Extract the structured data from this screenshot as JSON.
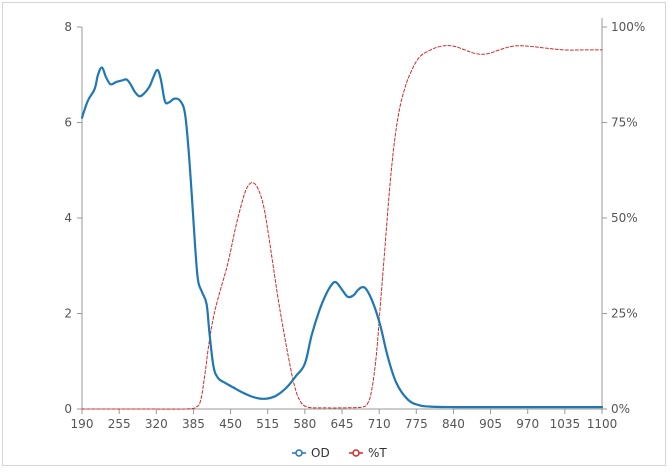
{
  "chart_data": {
    "type": "line",
    "title": "",
    "xlabel": "",
    "ylabel": "",
    "y2label": "",
    "xlim": [
      190,
      1100
    ],
    "ylim": [
      0,
      8
    ],
    "y2lim": [
      0,
      100
    ],
    "grid": false,
    "legend_position": "bottom",
    "x_ticks": [
      "190",
      "255",
      "320",
      "385",
      "450",
      "515",
      "580",
      "645",
      "710",
      "775",
      "840",
      "905",
      "970",
      "1035",
      "1100"
    ],
    "y_ticks": [
      "0",
      "2",
      "4",
      "6",
      "8"
    ],
    "y2_ticks": [
      "0%",
      "25%",
      "50%",
      "75%",
      "100%"
    ],
    "series": [
      {
        "name": "OD",
        "axis": "left",
        "color": "#1f77b4",
        "style": "solid",
        "points": [
          [
            190,
            6.1
          ],
          [
            200,
            6.45
          ],
          [
            212,
            6.7
          ],
          [
            218,
            7.0
          ],
          [
            225,
            7.15
          ],
          [
            232,
            6.95
          ],
          [
            240,
            6.8
          ],
          [
            250,
            6.85
          ],
          [
            260,
            6.88
          ],
          [
            268,
            6.9
          ],
          [
            275,
            6.8
          ],
          [
            282,
            6.65
          ],
          [
            290,
            6.55
          ],
          [
            298,
            6.6
          ],
          [
            308,
            6.75
          ],
          [
            315,
            6.95
          ],
          [
            322,
            7.1
          ],
          [
            328,
            6.9
          ],
          [
            335,
            6.45
          ],
          [
            342,
            6.42
          ],
          [
            352,
            6.5
          ],
          [
            362,
            6.45
          ],
          [
            370,
            6.2
          ],
          [
            376,
            5.5
          ],
          [
            382,
            4.5
          ],
          [
            388,
            3.4
          ],
          [
            393,
            2.7
          ],
          [
            400,
            2.45
          ],
          [
            408,
            2.2
          ],
          [
            413,
            1.6
          ],
          [
            420,
            0.9
          ],
          [
            428,
            0.65
          ],
          [
            440,
            0.55
          ],
          [
            455,
            0.45
          ],
          [
            470,
            0.35
          ],
          [
            485,
            0.27
          ],
          [
            500,
            0.22
          ],
          [
            515,
            0.22
          ],
          [
            530,
            0.28
          ],
          [
            548,
            0.45
          ],
          [
            565,
            0.7
          ],
          [
            580,
            0.95
          ],
          [
            592,
            1.55
          ],
          [
            605,
            2.05
          ],
          [
            617,
            2.4
          ],
          [
            628,
            2.62
          ],
          [
            635,
            2.65
          ],
          [
            645,
            2.5
          ],
          [
            655,
            2.35
          ],
          [
            665,
            2.38
          ],
          [
            672,
            2.48
          ],
          [
            680,
            2.55
          ],
          [
            688,
            2.5
          ],
          [
            700,
            2.2
          ],
          [
            712,
            1.75
          ],
          [
            725,
            1.1
          ],
          [
            740,
            0.55
          ],
          [
            760,
            0.2
          ],
          [
            780,
            0.08
          ],
          [
            800,
            0.05
          ],
          [
            840,
            0.04
          ],
          [
            900,
            0.04
          ],
          [
            970,
            0.04
          ],
          [
            1035,
            0.04
          ],
          [
            1100,
            0.04
          ]
        ]
      },
      {
        "name": "%T",
        "axis": "right",
        "color": "#d62728",
        "style": "dashed",
        "points": [
          [
            190,
            0
          ],
          [
            300,
            0
          ],
          [
            370,
            0
          ],
          [
            390,
            0.5
          ],
          [
            398,
            2.5
          ],
          [
            405,
            9
          ],
          [
            412,
            17
          ],
          [
            420,
            24
          ],
          [
            430,
            30
          ],
          [
            445,
            38
          ],
          [
            458,
            47
          ],
          [
            468,
            53
          ],
          [
            476,
            57
          ],
          [
            484,
            59
          ],
          [
            492,
            59
          ],
          [
            500,
            57
          ],
          [
            508,
            53
          ],
          [
            516,
            46
          ],
          [
            524,
            38
          ],
          [
            532,
            30
          ],
          [
            541,
            22
          ],
          [
            552,
            13
          ],
          [
            562,
            6
          ],
          [
            572,
            2
          ],
          [
            585,
            0.5
          ],
          [
            610,
            0.3
          ],
          [
            650,
            0.3
          ],
          [
            680,
            0.5
          ],
          [
            690,
            1.5
          ],
          [
            697,
            5
          ],
          [
            705,
            14
          ],
          [
            712,
            27
          ],
          [
            720,
            42
          ],
          [
            728,
            57
          ],
          [
            736,
            69
          ],
          [
            745,
            78
          ],
          [
            755,
            84
          ],
          [
            765,
            88
          ],
          [
            780,
            92
          ],
          [
            800,
            94
          ],
          [
            820,
            95
          ],
          [
            840,
            95
          ],
          [
            860,
            94
          ],
          [
            880,
            93
          ],
          [
            900,
            93
          ],
          [
            920,
            94
          ],
          [
            945,
            95
          ],
          [
            970,
            95
          ],
          [
            1000,
            94.5
          ],
          [
            1035,
            94
          ],
          [
            1070,
            94
          ],
          [
            1100,
            94
          ]
        ]
      }
    ]
  }
}
